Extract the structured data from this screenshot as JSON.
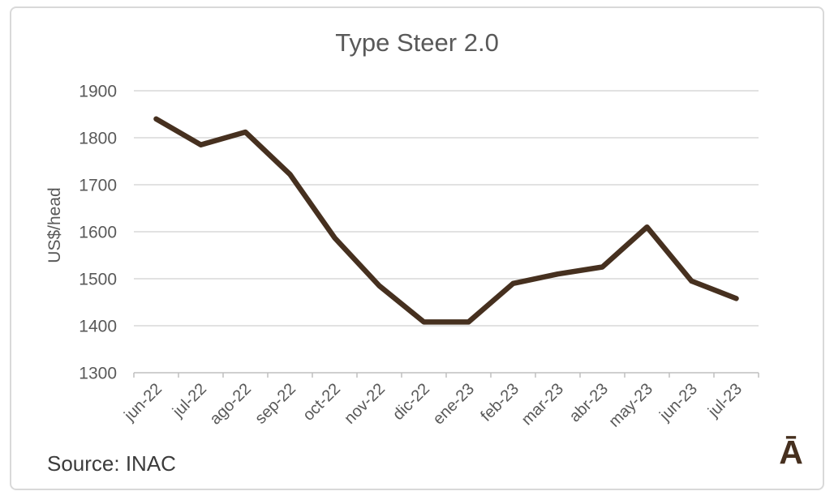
{
  "chart_data": {
    "type": "line",
    "title": "Type Steer 2.0",
    "xlabel": "",
    "ylabel": "US$/head",
    "categories": [
      "jun-22",
      "jul-22",
      "ago-22",
      "sep-22",
      "oct-22",
      "nov-22",
      "dic-22",
      "ene-23",
      "feb-23",
      "mar-23",
      "abr-23",
      "may-23",
      "jun-23",
      "jul-23"
    ],
    "series": [
      {
        "name": "Type Steer 2.0",
        "values": [
          1840,
          1785,
          1812,
          1722,
          1587,
          1485,
          1408,
          1408,
          1490,
          1510,
          1525,
          1610,
          1495,
          1458
        ]
      }
    ],
    "ylim": [
      1300,
      1900
    ],
    "ytick_step": 100,
    "grid": "horizontal",
    "legend": "none",
    "x_label_rotation_deg": -45,
    "colors": {
      "line": "#46301F",
      "grid": "#D9D9D9",
      "axis": "#BFBFBF",
      "tick_labels": "#595959",
      "title": "#595959"
    }
  },
  "footer": {
    "source_label": "Source: INAC",
    "source_color": "#3B3B3B",
    "logo_text": "Ā",
    "logo_color": "#46301F"
  }
}
